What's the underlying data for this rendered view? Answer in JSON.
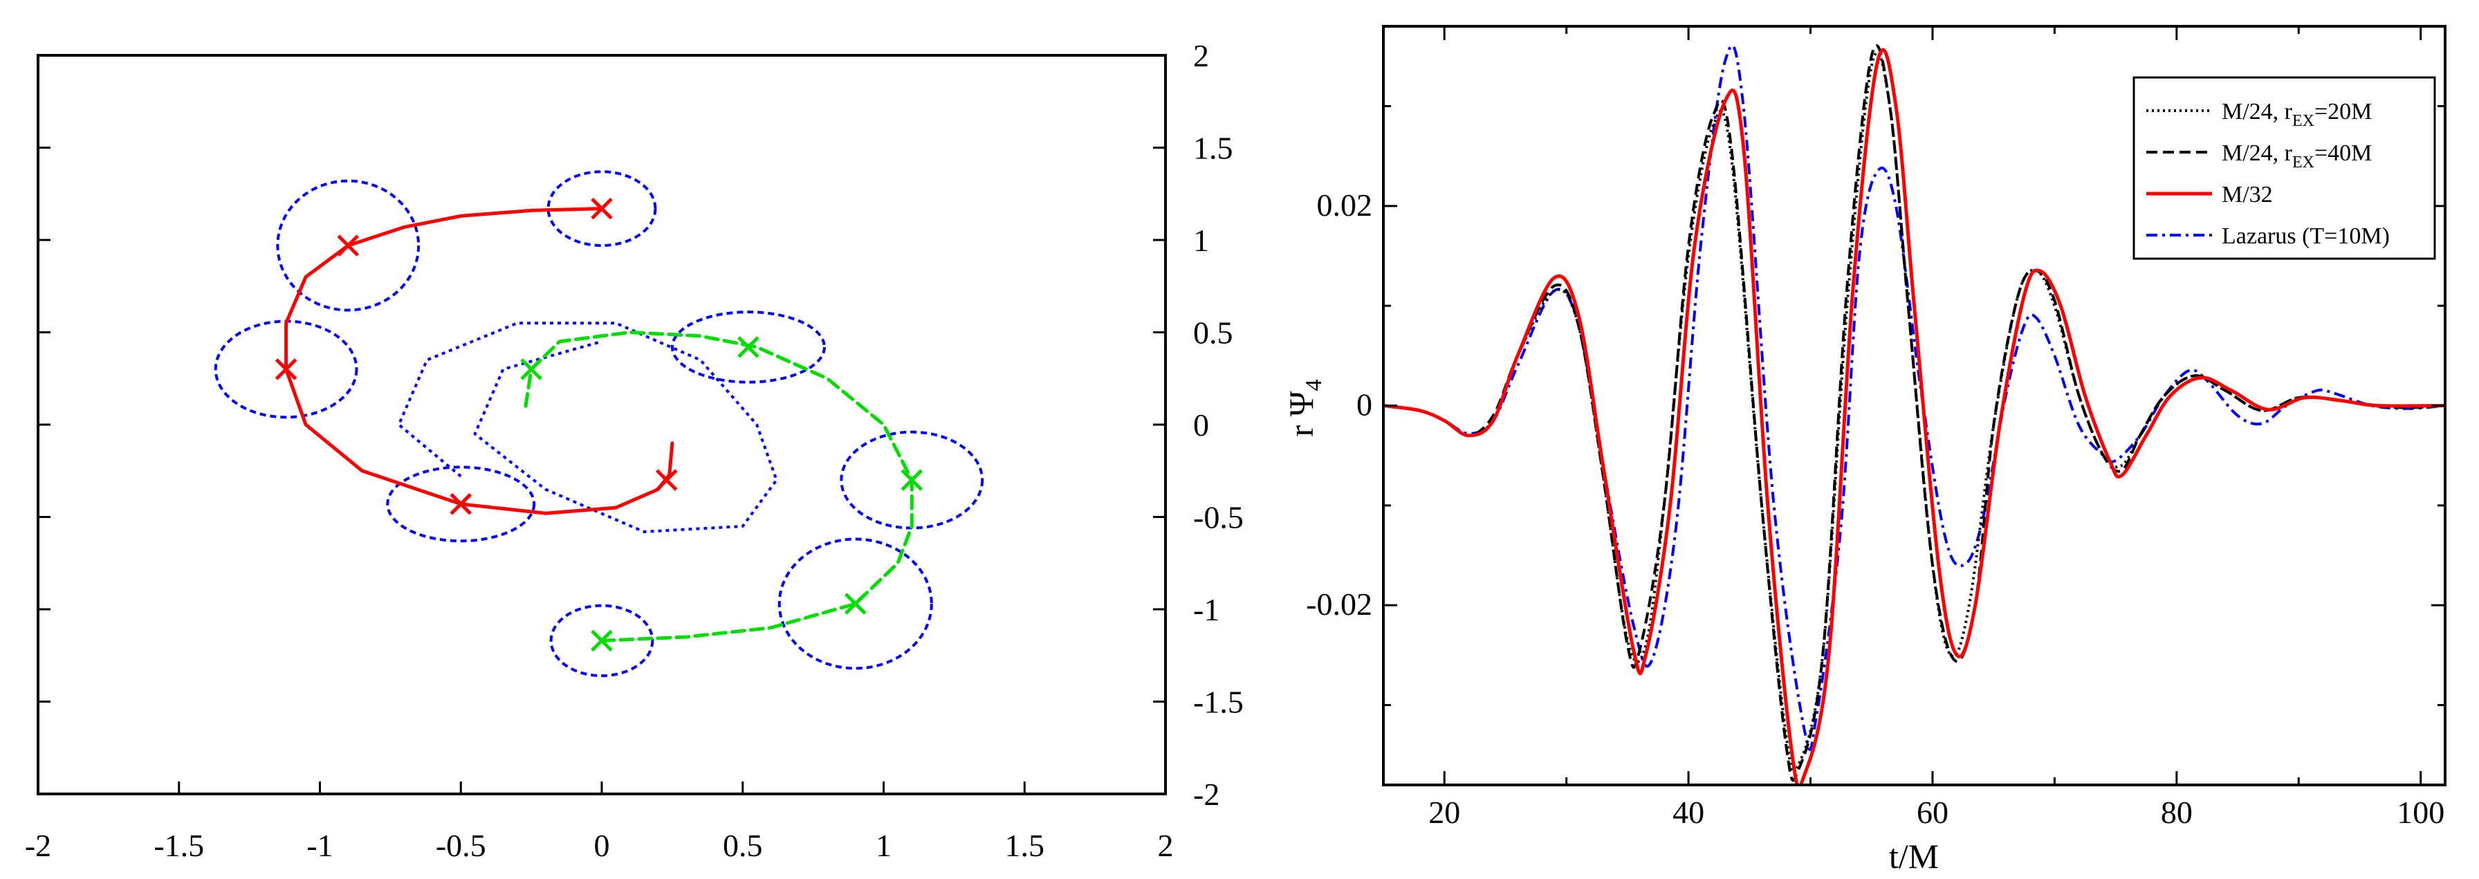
{
  "chart_data": [
    {
      "type": "line",
      "xlim": [
        -2,
        2
      ],
      "ylim": [
        -2,
        2
      ],
      "xticks": [
        "-2",
        "-1.5",
        "-1",
        "-0.5",
        "0",
        "0.5",
        "1",
        "1.5",
        "2"
      ],
      "yticks": [
        "-2",
        "-1.5",
        "-1",
        "-0.5",
        "0",
        "0.5",
        "1",
        "1.5",
        "2"
      ],
      "ytick_side": "right",
      "grid": false,
      "colors": {
        "track1": "#ff0000",
        "track2": "#00dd00",
        "horizon": "#0000ff"
      },
      "series": [
        {
          "style": "solid",
          "x": [
            0.0,
            -0.25,
            -0.5,
            -0.7,
            -0.9,
            -1.05,
            -1.12,
            -1.12,
            -1.05,
            -0.85,
            -0.5,
            -0.2,
            0.05,
            0.2,
            0.24,
            0.25
          ],
          "y": [
            1.17,
            1.16,
            1.13,
            1.07,
            0.97,
            0.8,
            0.55,
            0.3,
            0.0,
            -0.25,
            -0.43,
            -0.48,
            -0.45,
            -0.35,
            -0.27,
            -0.1
          ]
        },
        {
          "style": "dashed",
          "x": [
            -0.27,
            -0.25,
            -0.15,
            0.1,
            0.35,
            0.55,
            0.8,
            1.0,
            1.1,
            1.1,
            1.05,
            0.9,
            0.6,
            0.3,
            0.0
          ],
          "y": [
            0.1,
            0.3,
            0.45,
            0.5,
            0.48,
            0.42,
            0.25,
            0.0,
            -0.3,
            -0.55,
            -0.75,
            -0.97,
            -1.1,
            -1.15,
            -1.17
          ]
        }
      ],
      "markers": {
        "track1": {
          "x": [
            0.0,
            -0.9,
            -1.12,
            -0.5,
            0.23
          ],
          "y": [
            1.17,
            0.97,
            0.3,
            -0.43,
            -0.3
          ]
        },
        "track2": {
          "x": [
            -0.25,
            0.52,
            1.1,
            0.9,
            0.0
          ],
          "y": [
            0.3,
            0.42,
            -0.3,
            -0.97,
            -1.17
          ]
        }
      },
      "horizons": [
        {
          "cx": 0.0,
          "cy": 1.17,
          "rx": 0.19,
          "ry": 0.2
        },
        {
          "cx": -0.9,
          "cy": 0.97,
          "rx": 0.25,
          "ry": 0.35
        },
        {
          "cx": -1.12,
          "cy": 0.3,
          "rx": 0.25,
          "ry": 0.26
        },
        {
          "cx": -0.5,
          "cy": -0.43,
          "rx": 0.26,
          "ry": 0.2
        },
        {
          "cx": 0.52,
          "cy": 0.42,
          "rx": 0.27,
          "ry": 0.19
        },
        {
          "cx": 1.1,
          "cy": -0.3,
          "rx": 0.25,
          "ry": 0.26
        },
        {
          "cx": 0.9,
          "cy": -0.97,
          "rx": 0.27,
          "ry": 0.35
        },
        {
          "cx": 0.0,
          "cy": -1.17,
          "rx": 0.18,
          "ry": 0.19
        }
      ]
    },
    {
      "type": "line",
      "xlabel": "t/M",
      "ylabel_parts": {
        "a": "r Ψ",
        "sub": "4"
      },
      "xlim": [
        15,
        102
      ],
      "ylim": [
        -0.038,
        0.038
      ],
      "xticks": [
        20,
        40,
        60,
        80,
        100
      ],
      "yticks": [
        -0.02,
        0,
        0.02
      ],
      "ytick_labels": [
        "-0.02",
        "0",
        "0.02"
      ],
      "grid": false,
      "legend_position": "top-right",
      "series": [
        {
          "legend": {
            "main": "M/24, r",
            "sub": "EX",
            "rest": "=20M"
          },
          "color": "#000000",
          "style": "dotted",
          "points": [
            [
              15,
              0
            ],
            [
              18,
              -0.0005
            ],
            [
              20,
              -0.0015
            ],
            [
              22,
              -0.003
            ],
            [
              24,
              -0.0015
            ],
            [
              26,
              0.005
            ],
            [
              29,
              0.0115
            ],
            [
              31,
              0.008
            ],
            [
              33,
              -0.007
            ],
            [
              35,
              -0.0235
            ],
            [
              36.5,
              -0.024
            ],
            [
              38,
              -0.01
            ],
            [
              40,
              0.015
            ],
            [
              42,
              0.028
            ],
            [
              43.5,
              0.025
            ],
            [
              46,
              -0.01
            ],
            [
              48,
              -0.033
            ],
            [
              49,
              -0.036
            ],
            [
              51,
              -0.025
            ],
            [
              53,
              0.01
            ],
            [
              55,
              0.034
            ],
            [
              56.5,
              0.03
            ],
            [
              58,
              0.01
            ],
            [
              60,
              -0.016
            ],
            [
              61.5,
              -0.025
            ],
            [
              63,
              -0.02
            ],
            [
              65,
              -0.002
            ],
            [
              67,
              0.011
            ],
            [
              68.5,
              0.0135
            ],
            [
              70,
              0.01
            ],
            [
              72,
              0.001
            ],
            [
              74,
              -0.005
            ],
            [
              75.5,
              -0.006
            ],
            [
              77,
              -0.003
            ],
            [
              79,
              0.001
            ],
            [
              81.5,
              0.003
            ],
            [
              84,
              0.0015
            ],
            [
              87,
              -0.0005
            ],
            [
              90,
              0.0008
            ],
            [
              93,
              0.0006
            ],
            [
              96,
              0.0
            ],
            [
              99,
              -0.0002
            ],
            [
              102,
              0
            ]
          ]
        },
        {
          "legend": {
            "main": "M/24, r",
            "sub": "EX",
            "rest": "=40M"
          },
          "color": "#000000",
          "style": "dashed",
          "points": [
            [
              15,
              0
            ],
            [
              18,
              -0.0005
            ],
            [
              20,
              -0.0015
            ],
            [
              22,
              -0.003
            ],
            [
              24,
              -0.001
            ],
            [
              26,
              0.005
            ],
            [
              29,
              0.012
            ],
            [
              31,
              0.008
            ],
            [
              33,
              -0.007
            ],
            [
              35,
              -0.024
            ],
            [
              36,
              -0.0245
            ],
            [
              38,
              -0.01
            ],
            [
              40,
              0.016
            ],
            [
              42,
              0.029
            ],
            [
              43.5,
              0.026
            ],
            [
              46,
              -0.01
            ],
            [
              48,
              -0.034
            ],
            [
              49,
              -0.0365
            ],
            [
              51,
              -0.025
            ],
            [
              53,
              0.012
            ],
            [
              55,
              0.035
            ],
            [
              56.5,
              0.03
            ],
            [
              58,
              0.01
            ],
            [
              60,
              -0.016
            ],
            [
              61.8,
              -0.0255
            ],
            [
              63.5,
              -0.02
            ],
            [
              65,
              -0.002
            ],
            [
              67,
              0.011
            ],
            [
              68.5,
              0.0135
            ],
            [
              70,
              0.0105
            ],
            [
              72,
              0.001
            ],
            [
              74,
              -0.005
            ],
            [
              75.5,
              -0.0065
            ],
            [
              77,
              -0.003
            ],
            [
              79,
              0.001
            ],
            [
              81.5,
              0.003
            ],
            [
              84,
              0.0015
            ],
            [
              87,
              -0.0005
            ],
            [
              90,
              0.0008
            ],
            [
              93,
              0.0006
            ],
            [
              96,
              0.0
            ],
            [
              99,
              -0.0002
            ],
            [
              102,
              0
            ]
          ]
        },
        {
          "legend": {
            "main": "M/32",
            "sub": "",
            "rest": ""
          },
          "color": "#ff0000",
          "style": "solid",
          "points": [
            [
              15,
              0
            ],
            [
              18,
              -0.0005
            ],
            [
              20,
              -0.0015
            ],
            [
              22,
              -0.003
            ],
            [
              24,
              -0.0015
            ],
            [
              26,
              0.005
            ],
            [
              29,
              0.0128
            ],
            [
              31,
              0.009
            ],
            [
              33,
              -0.006
            ],
            [
              35.5,
              -0.0245
            ],
            [
              36.5,
              -0.025
            ],
            [
              38.5,
              -0.01
            ],
            [
              40.5,
              0.016
            ],
            [
              43,
              0.0305
            ],
            [
              44.5,
              0.026
            ],
            [
              46.5,
              -0.01
            ],
            [
              48.5,
              -0.035
            ],
            [
              49.5,
              -0.037
            ],
            [
              51.5,
              -0.025
            ],
            [
              53.5,
              0.012
            ],
            [
              55.5,
              0.0345
            ],
            [
              57,
              0.03
            ],
            [
              58.5,
              0.01
            ],
            [
              60.5,
              -0.016
            ],
            [
              62,
              -0.025
            ],
            [
              63.5,
              -0.02
            ],
            [
              65.5,
              -0.002
            ],
            [
              67.5,
              0.011
            ],
            [
              68.8,
              0.0135
            ],
            [
              70.5,
              0.01
            ],
            [
              72.5,
              0.001
            ],
            [
              74.5,
              -0.0055
            ],
            [
              75.5,
              -0.007
            ],
            [
              77.5,
              -0.003
            ],
            [
              79.5,
              0.001
            ],
            [
              82,
              0.0028
            ],
            [
              84.5,
              0.0015
            ],
            [
              87.5,
              -0.0004
            ],
            [
              90.5,
              0.0008
            ],
            [
              93.5,
              0.0005
            ],
            [
              96.5,
              0.0
            ],
            [
              102,
              0
            ]
          ]
        },
        {
          "legend": {
            "main": "Lazarus (T=10M)",
            "sub": "",
            "rest": ""
          },
          "color": "#0000ff",
          "style": "dashdot",
          "points": [
            [
              15,
              0
            ],
            [
              18,
              -0.0005
            ],
            [
              20,
              -0.0015
            ],
            [
              22,
              -0.0028
            ],
            [
              24,
              -0.0015
            ],
            [
              26,
              0.004
            ],
            [
              29,
              0.0115
            ],
            [
              31,
              0.008
            ],
            [
              33,
              -0.006
            ],
            [
              35.5,
              -0.022
            ],
            [
              37,
              -0.0255
            ],
            [
              39,
              -0.012
            ],
            [
              41,
              0.016
            ],
            [
              43,
              0.0345
            ],
            [
              44.5,
              0.03
            ],
            [
              47,
              -0.01
            ],
            [
              49.5,
              -0.0325
            ],
            [
              50.5,
              -0.031
            ],
            [
              52.5,
              -0.012
            ],
            [
              54,
              0.015
            ],
            [
              55.5,
              0.0235
            ],
            [
              57,
              0.02
            ],
            [
              59,
              0.002
            ],
            [
              61,
              -0.013
            ],
            [
              62.5,
              -0.016
            ],
            [
              64,
              -0.012
            ],
            [
              66,
              0.001
            ],
            [
              67.5,
              0.008
            ],
            [
              68.5,
              0.0088
            ],
            [
              70,
              0.005
            ],
            [
              72,
              -0.002
            ],
            [
              74,
              -0.005
            ],
            [
              75,
              -0.0055
            ],
            [
              77,
              -0.003
            ],
            [
              79,
              0.001
            ],
            [
              81,
              0.0035
            ],
            [
              82.5,
              0.0025
            ],
            [
              85,
              -0.001
            ],
            [
              87,
              -0.0018
            ],
            [
              89,
              0.0
            ],
            [
              91.5,
              0.0015
            ],
            [
              93,
              0.0012
            ],
            [
              96,
              0.0
            ],
            [
              99,
              -0.0003
            ],
            [
              102,
              0
            ]
          ]
        }
      ]
    }
  ]
}
